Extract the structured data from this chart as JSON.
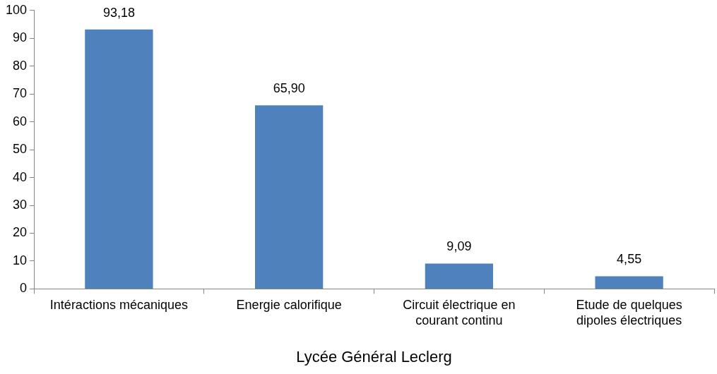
{
  "chart_data": {
    "type": "bar",
    "xlabel": "Lycée Général Leclerg",
    "categories": [
      "Intéractions mécaniques",
      "Energie calorifique",
      "Circuit électrique en courant continu",
      "Etude de quelques dipoles électriques"
    ],
    "values": [
      93.18,
      65.9,
      9.09,
      4.55
    ],
    "value_labels": [
      "93,18",
      "65,90",
      "9,09",
      "4,55"
    ],
    "color": "#4f81bd",
    "ylim": [
      0,
      100
    ],
    "yticks": [
      0,
      10,
      20,
      30,
      40,
      50,
      60,
      70,
      80,
      90,
      100
    ],
    "grid": false,
    "legend": false
  }
}
